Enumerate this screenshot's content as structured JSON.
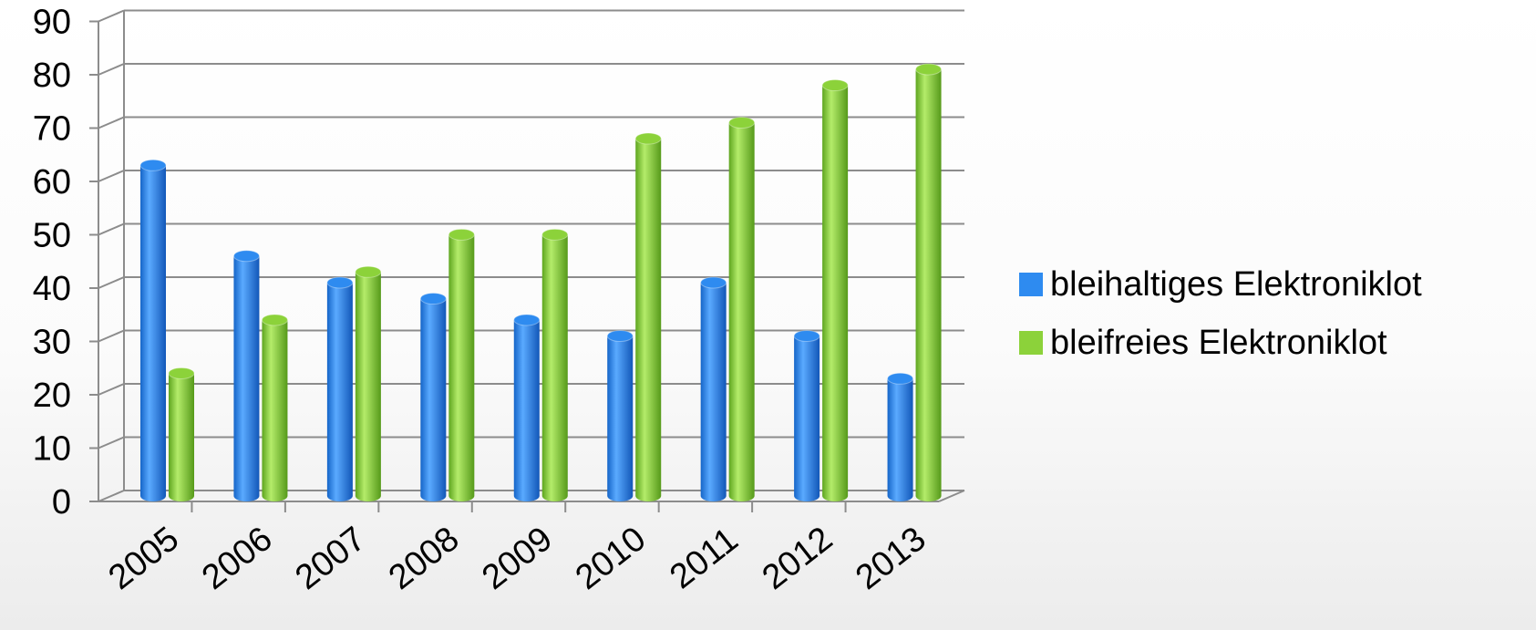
{
  "chart_data": {
    "type": "bar",
    "categories": [
      "2005",
      "2006",
      "2007",
      "2008",
      "2009",
      "2010",
      "2011",
      "2012",
      "2013"
    ],
    "series": [
      {
        "name": "bleihaltiges Elektroniklot",
        "values": [
          62,
          45,
          40,
          37,
          33,
          30,
          40,
          30,
          22
        ],
        "color": "#2E8BF0"
      },
      {
        "name": "bleifreies Elektroniklot",
        "values": [
          23,
          33,
          42,
          49,
          49,
          67,
          70,
          77,
          80
        ],
        "color": "#8CD23A"
      }
    ],
    "title": "",
    "xlabel": "",
    "ylabel": "",
    "ylim": [
      0,
      90
    ],
    "yticks": [
      "0",
      "10",
      "20",
      "30",
      "40",
      "50",
      "60",
      "70",
      "80",
      "90"
    ],
    "grid": true,
    "legend_position": "right",
    "style": "3d-cylinder"
  }
}
